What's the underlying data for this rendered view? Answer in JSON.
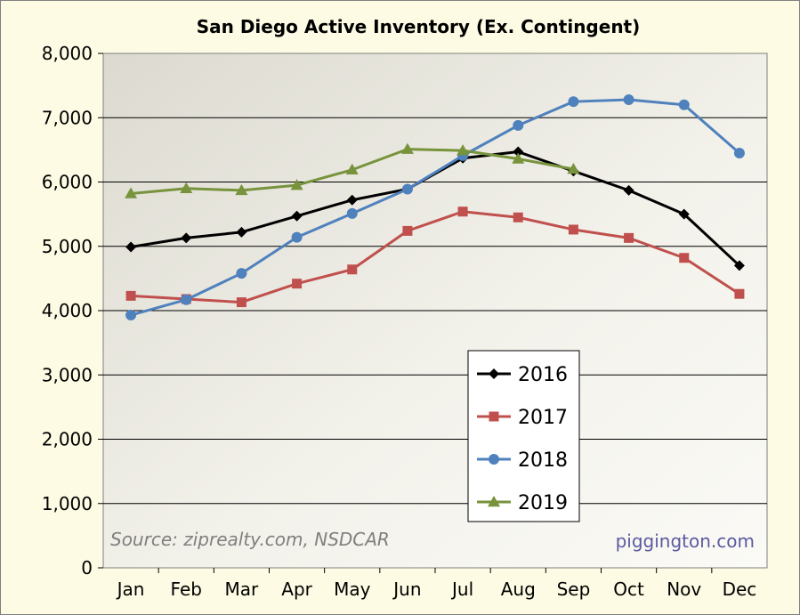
{
  "chart_data": {
    "type": "line",
    "title": "San Diego Active Inventory (Ex. Contingent)",
    "xlabel": "",
    "ylabel": "",
    "categories": [
      "Jan",
      "Feb",
      "Mar",
      "Apr",
      "May",
      "Jun",
      "Jul",
      "Aug",
      "Sep",
      "Oct",
      "Nov",
      "Dec"
    ],
    "ylim": [
      0,
      8000
    ],
    "yticks": [
      0,
      1000,
      2000,
      3000,
      4000,
      5000,
      6000,
      7000,
      8000
    ],
    "ytick_labels": [
      "0",
      "1,000",
      "2,000",
      "3,000",
      "4,000",
      "5,000",
      "6,000",
      "7,000",
      "8,000"
    ],
    "grid": "horizontal",
    "legend_position": "center-bottom",
    "series": [
      {
        "name": "2016",
        "color": "#000000",
        "marker": "diamond",
        "values": [
          4990,
          5130,
          5220,
          5470,
          5720,
          5890,
          6370,
          6470,
          6170,
          5870,
          5500,
          4700
        ]
      },
      {
        "name": "2017",
        "color": "#c0504d",
        "marker": "square",
        "values": [
          4230,
          4180,
          4130,
          4420,
          4640,
          5240,
          5540,
          5450,
          5260,
          5130,
          4820,
          4260
        ]
      },
      {
        "name": "2018",
        "color": "#4f81bd",
        "marker": "circle",
        "values": [
          3930,
          4170,
          4580,
          5140,
          5510,
          5890,
          6410,
          6880,
          7250,
          7280,
          7200,
          6450
        ]
      },
      {
        "name": "2019",
        "color": "#77933c",
        "marker": "triangle",
        "values": [
          5820,
          5900,
          5870,
          5950,
          6190,
          6510,
          6490,
          6360,
          6200,
          null,
          null,
          null
        ]
      }
    ],
    "annotations": [
      "Source: ziprealty.com, NSDCAR",
      "piggington.com"
    ]
  }
}
